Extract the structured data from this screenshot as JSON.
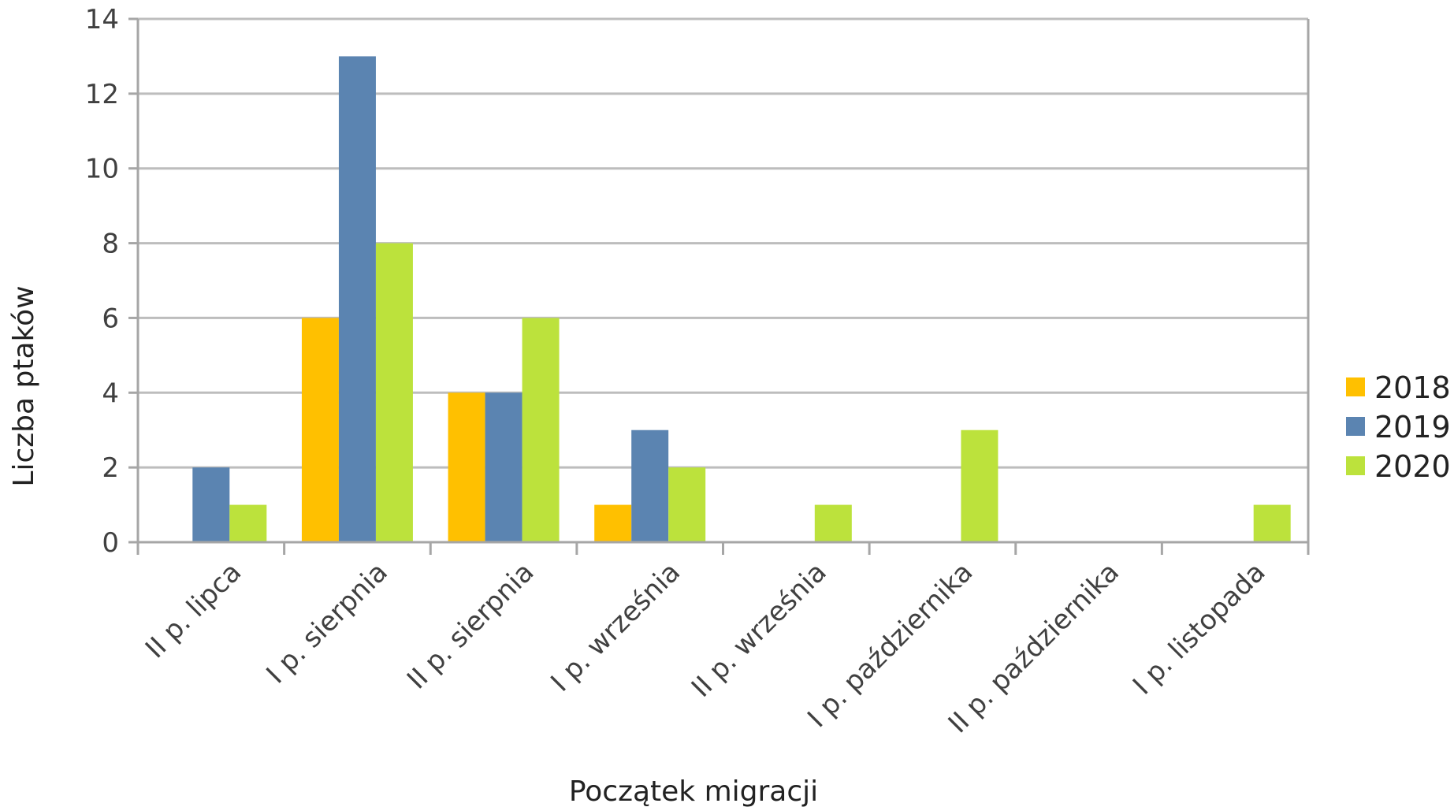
{
  "chart_data": {
    "type": "bar",
    "title": "",
    "xlabel": "Początek migracji",
    "ylabel": "Liczba ptaków",
    "ylim": [
      0,
      14
    ],
    "yticks": [
      "0",
      "2",
      "4",
      "6",
      "8",
      "10",
      "12",
      "14"
    ],
    "grid": true,
    "legend": "right",
    "categories": [
      "II p. lipca",
      "I p. sierpnia",
      "II p. sierpnia",
      "I p. września",
      "II p. września",
      "I p. października",
      "II p. października",
      "I p. listopada"
    ],
    "series": [
      {
        "name": "2018",
        "color": "#FFC000",
        "values": [
          0,
          6,
          4,
          1,
          0,
          0,
          0,
          0
        ]
      },
      {
        "name": "2019",
        "color": "#5B84B1",
        "values": [
          2,
          13,
          4,
          3,
          0,
          0,
          0,
          0
        ]
      },
      {
        "name": "2020",
        "color": "#BCE23C",
        "values": [
          1,
          8,
          6,
          2,
          1,
          3,
          0,
          1
        ]
      }
    ]
  }
}
